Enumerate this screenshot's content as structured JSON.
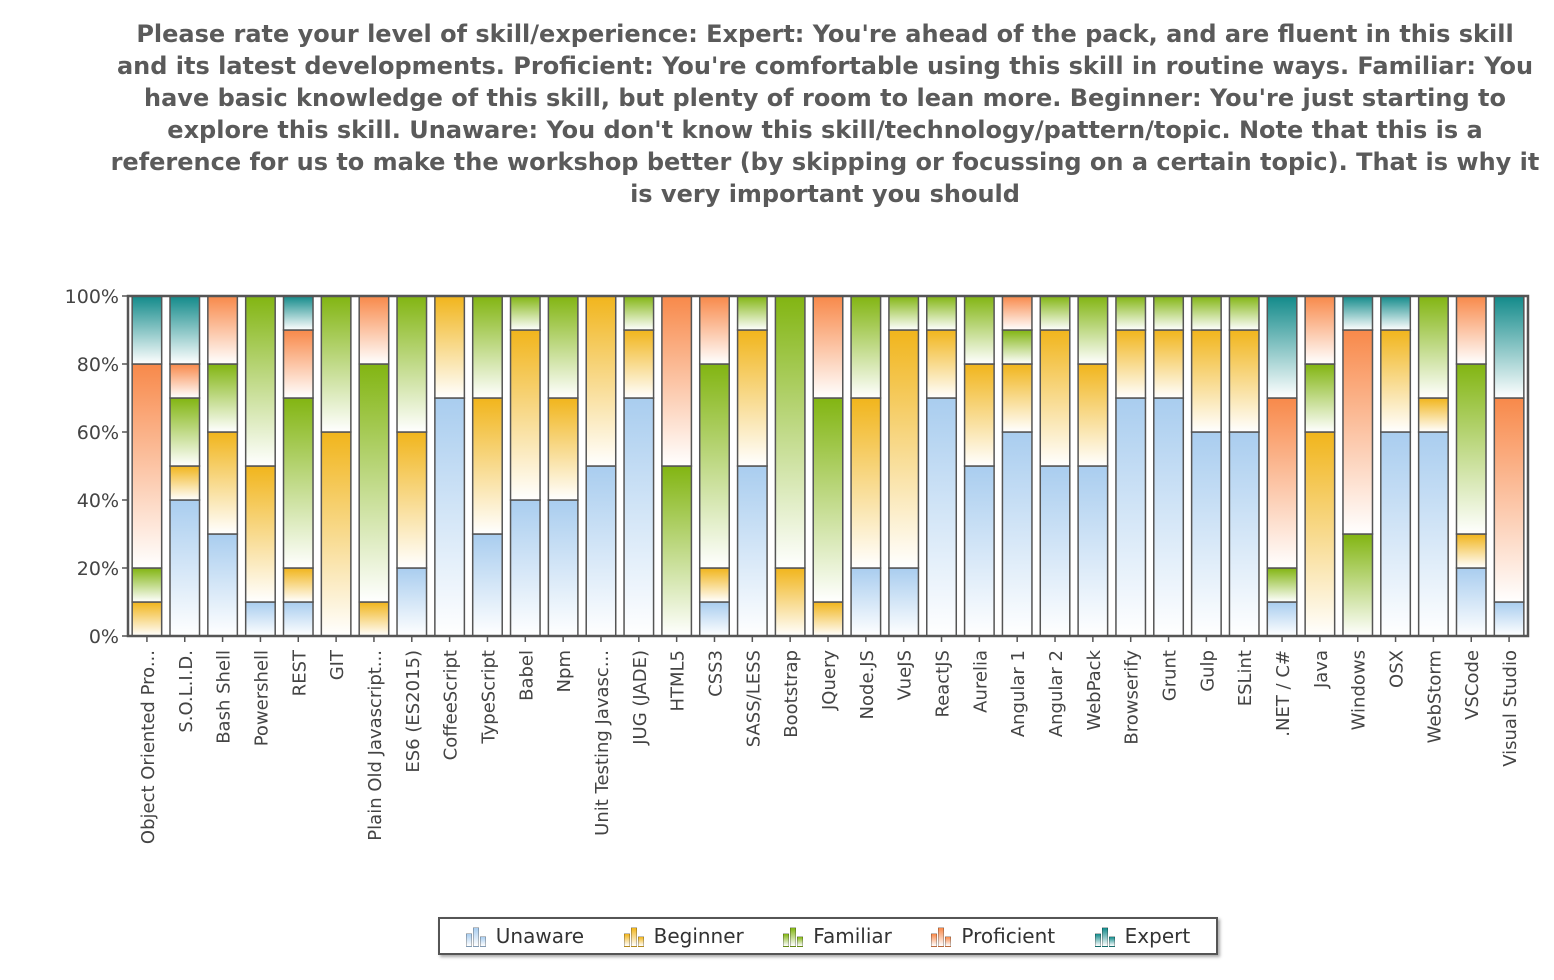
{
  "chart_data": {
    "type": "bar",
    "stacked": true,
    "title": "Please rate your level of skill/experience: Expert: You're ahead of the pack, and are fluent in this skill and its latest developments. Proficient: You're comfortable using this skill in routine ways. Familiar: You have basic knowledge of this skill, but plenty of room to lean more. Beginner: You're just starting to explore this skill. Unaware: You don't know this skill/technology/pattern/topic.  Note that this is a reference for us to make the workshop better (by skipping or focussing on a certain topic).  That is why it is very important you should",
    "xlabel": "",
    "ylabel": "",
    "ylim": [
      0,
      100
    ],
    "y_ticks": [
      "0%",
      "20%",
      "40%",
      "60%",
      "80%",
      "100%"
    ],
    "legend_position": "bottom",
    "categories": [
      "Object Oriented Pro...",
      "S.O.L.I.D.",
      "Bash Shell",
      "Powershell",
      "REST",
      "GIT",
      "Plain Old Javascript...",
      "ES6 (ES2015)",
      "CoffeeScript",
      "TypeScript",
      "Babel",
      "Npm",
      "Unit Testing Javasc...",
      "JUG (JADE)",
      "HTML5",
      "CSS3",
      "SASS/LESS",
      "Bootstrap",
      "JQuery",
      "Node.JS",
      "VueJS",
      "ReactJS",
      "Aurelia",
      "Angular 1",
      "Angular 2",
      "WebPack",
      "Browserify",
      "Grunt",
      "Gulp",
      "ESLint",
      ".NET / C#",
      "Java",
      "Windows",
      "OSX",
      "WebStorm",
      "VSCode",
      "Visual Studio"
    ],
    "series": [
      {
        "name": "Unaware",
        "color": "#a9cdef",
        "values": [
          0,
          40,
          30,
          10,
          10,
          0,
          0,
          20,
          70,
          30,
          40,
          40,
          50,
          70,
          0,
          10,
          50,
          0,
          0,
          20,
          20,
          70,
          50,
          60,
          50,
          50,
          70,
          70,
          60,
          60,
          10,
          0,
          0,
          60,
          60,
          20,
          10
        ]
      },
      {
        "name": "Beginner",
        "color": "#f1b51c",
        "values": [
          10,
          10,
          30,
          40,
          10,
          60,
          10,
          40,
          30,
          40,
          50,
          30,
          50,
          20,
          0,
          10,
          40,
          20,
          10,
          50,
          70,
          20,
          30,
          20,
          40,
          30,
          20,
          20,
          30,
          30,
          0,
          60,
          0,
          30,
          10,
          10,
          0
        ]
      },
      {
        "name": "Familiar",
        "color": "#82b512",
        "values": [
          10,
          20,
          20,
          50,
          50,
          40,
          70,
          40,
          0,
          30,
          10,
          30,
          0,
          10,
          50,
          60,
          10,
          80,
          60,
          30,
          10,
          10,
          20,
          10,
          10,
          20,
          10,
          10,
          10,
          10,
          10,
          20,
          30,
          0,
          30,
          50,
          0
        ]
      },
      {
        "name": "Proficient",
        "color": "#f8894a",
        "values": [
          60,
          10,
          20,
          0,
          20,
          0,
          20,
          0,
          0,
          0,
          0,
          0,
          0,
          0,
          50,
          20,
          0,
          0,
          30,
          0,
          0,
          0,
          0,
          10,
          0,
          0,
          0,
          0,
          0,
          0,
          50,
          20,
          60,
          0,
          0,
          20,
          60
        ]
      },
      {
        "name": "Expert",
        "color": "#128a8a",
        "values": [
          20,
          20,
          0,
          0,
          10,
          0,
          0,
          0,
          0,
          0,
          0,
          0,
          0,
          0,
          0,
          0,
          0,
          0,
          0,
          0,
          0,
          0,
          0,
          0,
          0,
          0,
          0,
          0,
          0,
          0,
          30,
          0,
          10,
          10,
          0,
          0,
          30
        ]
      }
    ]
  }
}
